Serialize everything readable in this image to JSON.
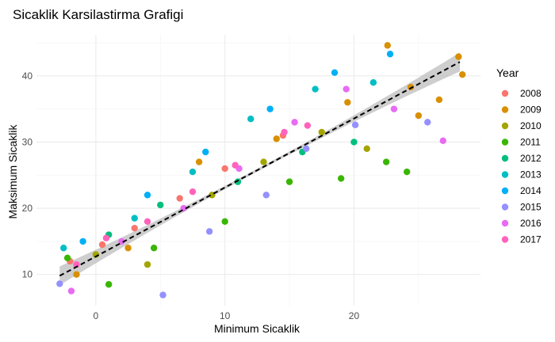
{
  "chart_data": {
    "type": "scatter",
    "title": "Sicaklik Karsilastirma Grafigi",
    "xlabel": "Minimum Sicaklik",
    "ylabel": "Maksimum Sicaklik",
    "xlim": [
      -4.6,
      29.8
    ],
    "ylim": [
      5.3,
      46.2
    ],
    "x_ticks": [
      0,
      10,
      20
    ],
    "y_ticks": [
      10,
      20,
      30,
      40
    ],
    "grid": true,
    "legend": {
      "title": "Year",
      "placement": "right"
    },
    "series": [
      {
        "name": "2008",
        "color": "#F8766D",
        "x": [
          -2.0,
          0.5,
          3.0,
          6.5,
          10.0,
          14.5
        ],
        "y": [
          12.0,
          14.5,
          17.0,
          21.5,
          26.0,
          31.0
        ]
      },
      {
        "name": "2009",
        "color": "#D89000",
        "x": [
          -1.5,
          2.5,
          8.0,
          14.0,
          19.5,
          22.6,
          24.4,
          25.0,
          26.6,
          28.1,
          28.4
        ],
        "y": [
          10.0,
          14.0,
          27.0,
          30.5,
          36.0,
          44.6,
          38.3,
          34.0,
          36.4,
          42.9,
          40.2
        ]
      },
      {
        "name": "2010",
        "color": "#A3A500",
        "x": [
          0.0,
          4.0,
          9.0,
          13.0,
          17.5,
          21.0
        ],
        "y": [
          13.0,
          11.5,
          22.0,
          27.0,
          31.5,
          29.0
        ]
      },
      {
        "name": "2011",
        "color": "#39B600",
        "x": [
          -2.2,
          1.0,
          4.5,
          10.0,
          15.0,
          19.0,
          22.5,
          24.1
        ],
        "y": [
          12.5,
          8.5,
          14.0,
          18.0,
          24.0,
          24.5,
          27.0,
          25.5
        ]
      },
      {
        "name": "2012",
        "color": "#00BF7D",
        "x": [
          1.0,
          5.0,
          11.0,
          16.0,
          20.0
        ],
        "y": [
          16.0,
          20.5,
          24.0,
          28.5,
          30.0
        ]
      },
      {
        "name": "2013",
        "color": "#00BFC4",
        "x": [
          -2.5,
          3.0,
          7.5,
          12.0,
          17.0,
          21.5
        ],
        "y": [
          14.0,
          18.5,
          25.5,
          33.5,
          38.0,
          39.0
        ]
      },
      {
        "name": "2014",
        "color": "#00B0F6",
        "x": [
          -1.0,
          4.0,
          8.5,
          13.5,
          18.5,
          22.8
        ],
        "y": [
          15.0,
          22.0,
          28.5,
          35.0,
          40.5,
          43.3
        ]
      },
      {
        "name": "2015",
        "color": "#9590FF",
        "x": [
          -2.8,
          5.2,
          8.8,
          13.2,
          16.3,
          20.1,
          25.7
        ],
        "y": [
          8.6,
          6.9,
          16.5,
          22.0,
          29.0,
          32.6,
          33.0
        ]
      },
      {
        "name": "2016",
        "color": "#E76BF3",
        "x": [
          -1.9,
          2.0,
          6.8,
          11.1,
          15.4,
          19.4,
          23.1,
          26.9
        ],
        "y": [
          7.5,
          15.0,
          20.0,
          26.0,
          33.0,
          38.0,
          35.0,
          30.2
        ]
      },
      {
        "name": "2017",
        "color": "#FF62BC",
        "x": [
          -1.5,
          0.8,
          4.0,
          7.5,
          10.8,
          14.6,
          16.4
        ],
        "y": [
          11.5,
          15.5,
          18.0,
          22.5,
          26.5,
          31.5,
          32.5
        ]
      }
    ],
    "trend_line": {
      "x": [
        -2.8,
        28.2
      ],
      "y": [
        9.8,
        42.1
      ],
      "style": "dashed",
      "color": "#000000",
      "ribbon_color": "#bdbdbd"
    }
  }
}
